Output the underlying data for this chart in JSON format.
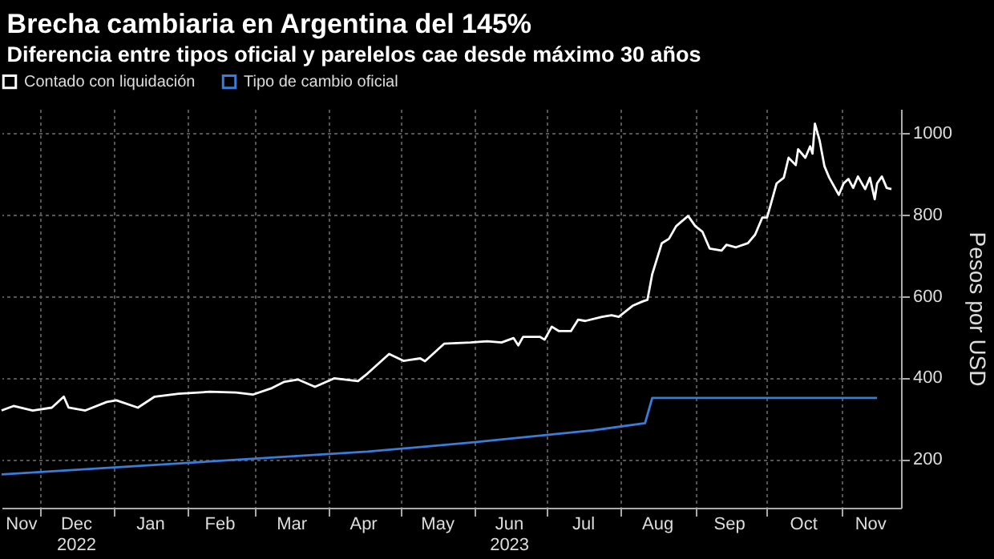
{
  "chart_data": {
    "type": "line",
    "title": "Brecha cambiaria en Argentina del 145%",
    "subtitle": "Diferencia entre tipos oficial y parelelos cae desde máximo 30 años",
    "ylabel": "Pesos por USD",
    "xlim": [
      "2022-11-15",
      "2023-11-26"
    ],
    "ylim": [
      80,
      1060
    ],
    "yticks": [
      200,
      400,
      600,
      800,
      1000
    ],
    "xticks": [
      {
        "value": "2022-12-01",
        "label": null
      },
      {
        "value": "2023-01-01",
        "label": null
      },
      {
        "value": "2023-02-01",
        "label": null
      },
      {
        "value": "2023-03-01",
        "label": null
      },
      {
        "value": "2023-04-01",
        "label": null
      },
      {
        "value": "2023-05-01",
        "label": null
      },
      {
        "value": "2023-06-01",
        "label": null
      },
      {
        "value": "2023-07-01",
        "label": null
      },
      {
        "value": "2023-08-01",
        "label": null
      },
      {
        "value": "2023-09-01",
        "label": null
      },
      {
        "value": "2023-10-01",
        "label": null
      },
      {
        "value": "2023-11-01",
        "label": null
      },
      {
        "value": "2022-11-23",
        "label": "Nov"
      },
      {
        "value": "2022-12-16",
        "label": "Dec\n2022"
      },
      {
        "value": "2023-01-16",
        "label": "Jan"
      },
      {
        "value": "2023-02-14",
        "label": "Feb"
      },
      {
        "value": "2023-03-16",
        "label": "Mar"
      },
      {
        "value": "2023-04-15",
        "label": "Apr"
      },
      {
        "value": "2023-05-16",
        "label": "May"
      },
      {
        "value": "2023-06-15",
        "label": "Jun\n2023"
      },
      {
        "value": "2023-07-16",
        "label": "Jul"
      },
      {
        "value": "2023-08-16",
        "label": "Aug"
      },
      {
        "value": "2023-09-15",
        "label": "Sep"
      },
      {
        "value": "2023-10-16",
        "label": "Oct"
      },
      {
        "value": "2023-11-13",
        "label": "Nov"
      }
    ],
    "grid": true,
    "legend": "top left",
    "series": [
      {
        "name": "Contado con liquidación",
        "color": "#ffffff",
        "x": [
          "2022-11-15",
          "2022-11-20",
          "2022-11-28",
          "2022-12-06",
          "2022-12-11",
          "2022-12-13",
          "2022-12-20",
          "2022-12-29",
          "2023-01-02",
          "2023-01-11",
          "2023-01-18",
          "2023-01-28",
          "2023-02-10",
          "2023-02-21",
          "2023-02-28",
          "2023-03-08",
          "2023-03-13",
          "2023-03-19",
          "2023-03-26",
          "2023-04-03",
          "2023-04-13",
          "2023-04-17",
          "2023-04-26",
          "2023-05-02",
          "2023-05-09",
          "2023-05-11",
          "2023-05-19",
          "2023-05-30",
          "2023-06-06",
          "2023-06-12",
          "2023-06-17",
          "2023-06-19",
          "2023-06-21",
          "2023-06-28",
          "2023-06-30",
          "2023-07-03",
          "2023-07-06",
          "2023-07-11",
          "2023-07-14",
          "2023-07-17",
          "2023-07-24",
          "2023-07-28",
          "2023-07-31",
          "2023-08-06",
          "2023-08-10",
          "2023-08-12",
          "2023-08-14",
          "2023-08-18",
          "2023-08-21",
          "2023-08-24",
          "2023-08-29",
          "2023-09-01",
          "2023-09-04",
          "2023-09-07",
          "2023-09-12",
          "2023-09-14",
          "2023-09-18",
          "2023-09-23",
          "2023-09-26",
          "2023-09-29",
          "2023-10-01",
          "2023-10-05",
          "2023-10-08",
          "2023-10-10",
          "2023-10-13",
          "2023-10-14",
          "2023-10-17",
          "2023-10-19",
          "2023-10-20",
          "2023-10-21",
          "2023-10-23",
          "2023-10-25",
          "2023-10-27",
          "2023-10-31",
          "2023-11-02",
          "2023-11-04",
          "2023-11-06",
          "2023-11-08",
          "2023-11-11",
          "2023-11-13",
          "2023-11-15",
          "2023-11-16",
          "2023-11-18",
          "2023-11-20",
          "2023-11-22"
        ],
        "values": [
          319,
          330,
          319,
          326,
          353,
          326,
          319,
          340,
          344,
          326,
          353,
          360,
          365,
          363,
          358,
          374,
          389,
          395,
          377,
          398,
          391,
          410,
          458,
          441,
          447,
          440,
          483,
          486,
          489,
          486,
          497,
          479,
          500,
          500,
          493,
          525,
          514,
          514,
          542,
          539,
          549,
          553,
          549,
          577,
          587,
          591,
          654,
          730,
          741,
          772,
          797,
          772,
          758,
          717,
          712,
          726,
          720,
          730,
          751,
          793,
          793,
          877,
          891,
          940,
          922,
          961,
          940,
          968,
          950,
          1024,
          982,
          919,
          891,
          849,
          877,
          888,
          866,
          894,
          863,
          891,
          838,
          877,
          894,
          866,
          863
        ]
      },
      {
        "name": "Tipo de cambio oficial",
        "color": "#3a7dd8",
        "x": [
          "2022-11-15",
          "2023-01-31",
          "2023-04-17",
          "2023-05-30",
          "2023-07-20",
          "2023-08-11",
          "2023-08-14",
          "2023-11-16"
        ],
        "values": [
          162,
          190,
          218,
          240,
          270,
          288,
          350,
          350
        ]
      }
    ]
  }
}
